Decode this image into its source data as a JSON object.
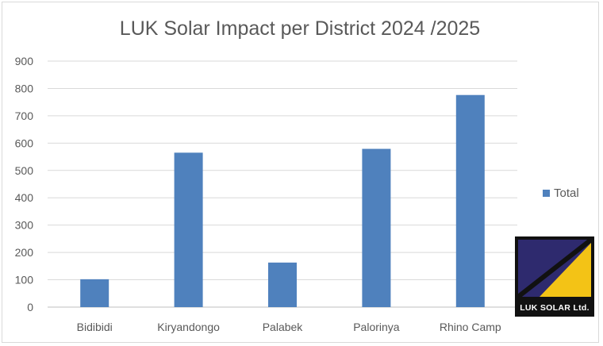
{
  "chart_data": {
    "type": "bar",
    "title": "LUK Solar Impact per District 2024 /2025",
    "categories": [
      "Bidibidi",
      "Kiryandongo",
      "Palabek",
      "Palorinya",
      "Rhino Camp"
    ],
    "series": [
      {
        "name": "Total",
        "values": [
          102,
          565,
          163,
          579,
          776
        ],
        "color": "#4f81bd"
      }
    ],
    "ylim": [
      0,
      900
    ],
    "yticks": [
      "0",
      "100",
      "200",
      "300",
      "400",
      "500",
      "600",
      "700",
      "800",
      "900"
    ],
    "grid": true,
    "legend_position": "right"
  },
  "logo": {
    "text": "LUK SOLAR Ltd.",
    "colors": {
      "purple": "#2e2a6e",
      "yellow": "#f3c316",
      "black": "#111111"
    }
  }
}
